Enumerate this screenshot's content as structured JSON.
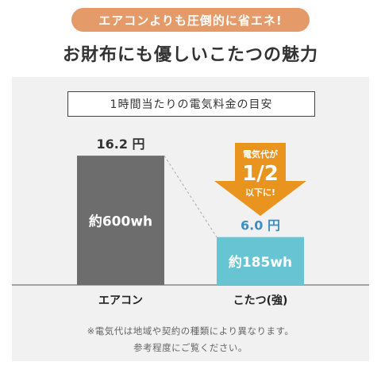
{
  "banner": "エアコンよりも圧倒的に省エネ!",
  "headline": "お財布にも優しいこたつの魅力",
  "chart_data": {
    "type": "bar",
    "title": "1時間当たりの電気料金の目安",
    "categories": [
      "エアコン",
      "こたつ(強)"
    ],
    "values": [
      16.2,
      6.0
    ],
    "unit": "円",
    "value_labels": [
      "16.2 円",
      "6.0 円"
    ],
    "bar_labels": [
      "約600wh",
      "約185wh"
    ],
    "colors": [
      "#6d6d6d",
      "#66c4d3"
    ],
    "value_label_colors": [
      "#333333",
      "#3a8fc0"
    ],
    "ylim": [
      0,
      18
    ],
    "grid": false,
    "annotation": {
      "lines": [
        "電気代が",
        "1/2",
        "以下に!"
      ],
      "color": "#e8941f"
    }
  },
  "notes": [
    "※電気代は地域や契約の種類により異なります。",
    "参考程度にご覧ください。"
  ]
}
